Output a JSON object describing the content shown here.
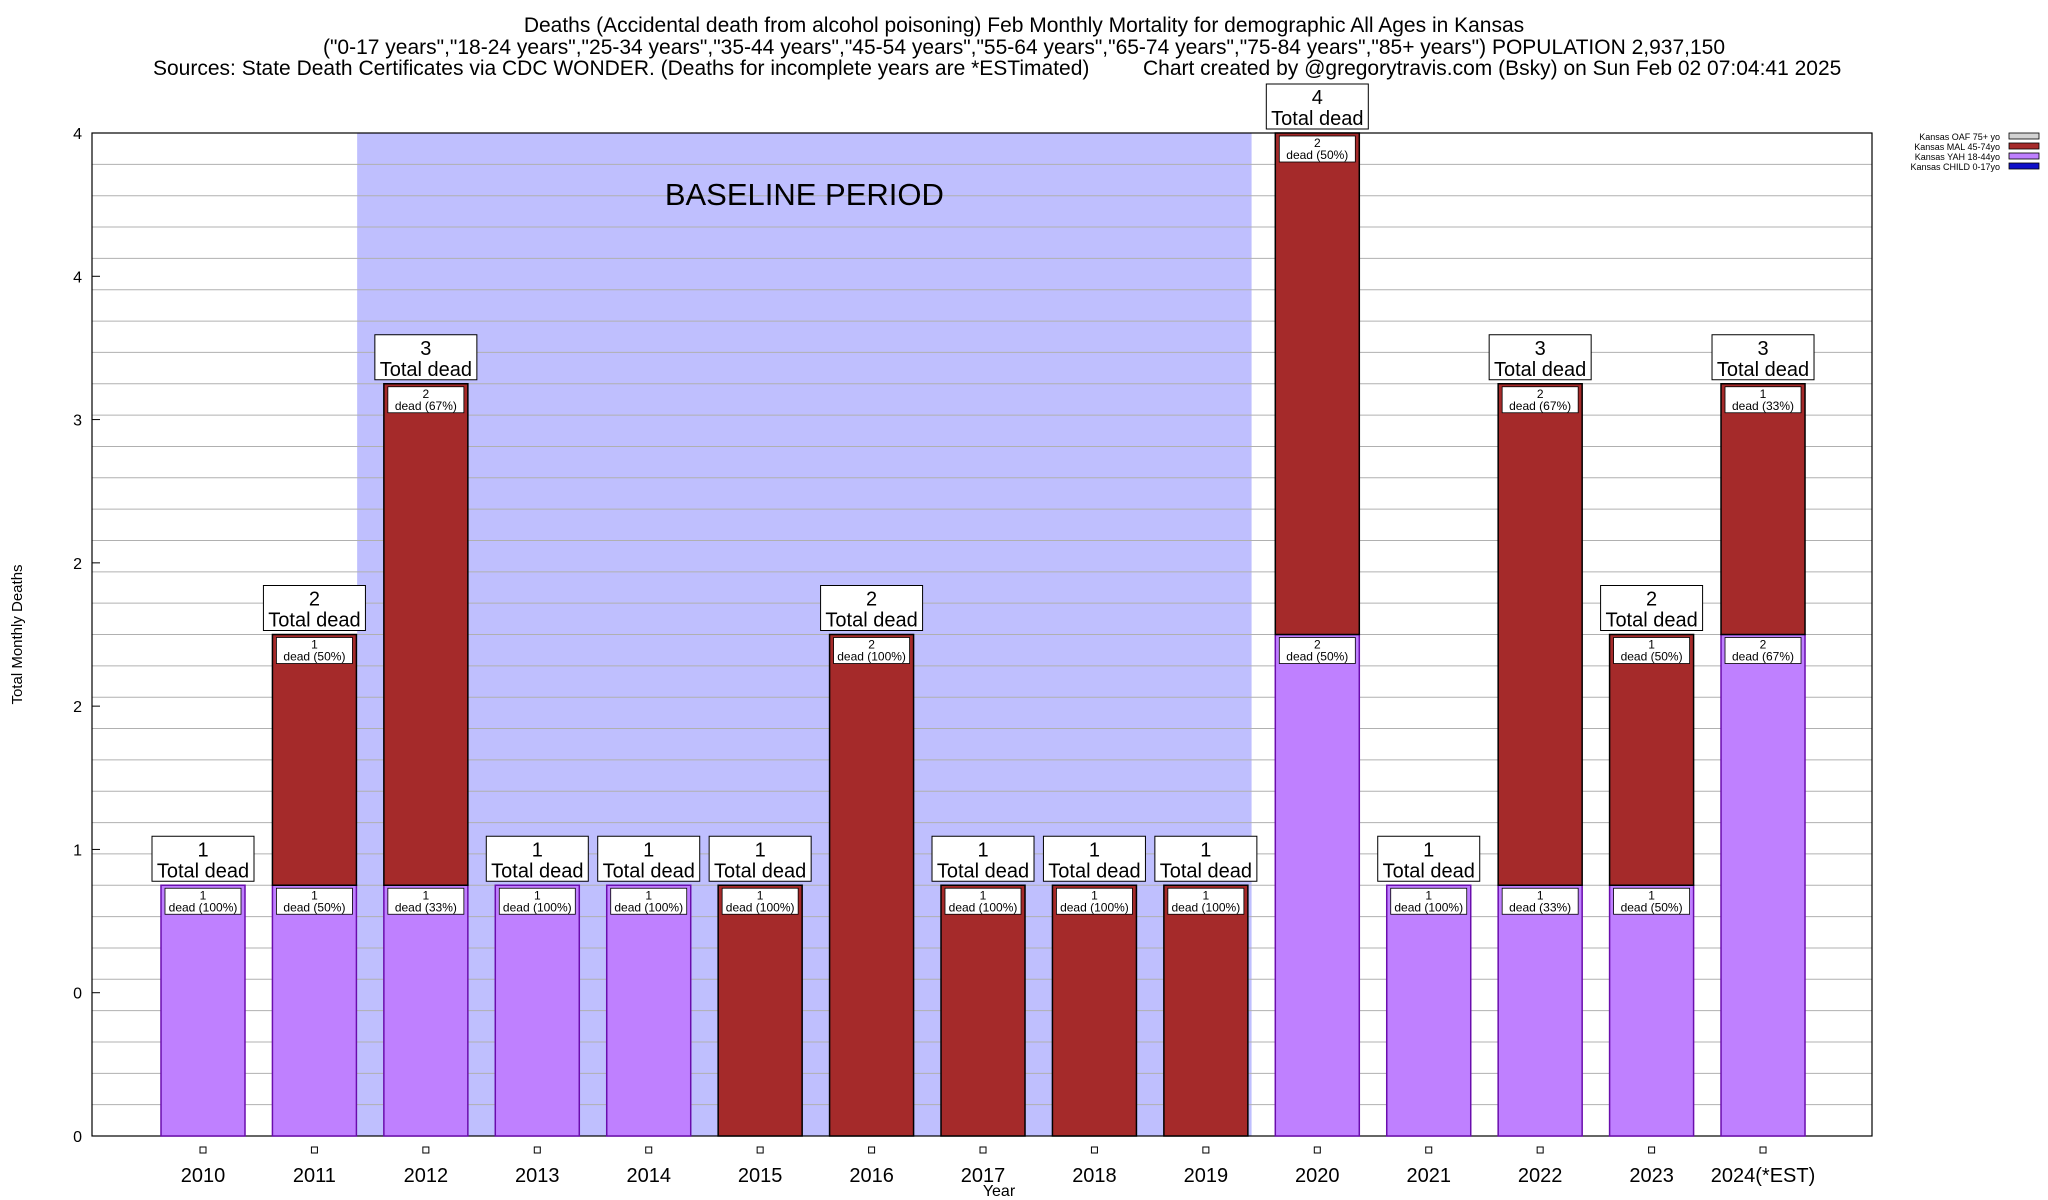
{
  "header": {
    "title": "Deaths (Accidental death from alcohol poisoning) Feb Monthly Mortality for demographic All Ages in Kansas",
    "subtitle": "(\"0-17 years\",\"18-24 years\",\"25-34 years\",\"35-44 years\",\"45-54 years\",\"55-64 years\",\"65-74 years\",\"75-84 years\",\"85+ years\") POPULATION 2,937,150",
    "sources": "Sources: State Death Certificates via CDC WONDER. (Deaths for incomplete years are *ESTimated)",
    "credit": "Chart created by @gregorytravis.com (Bsky) on Sun Feb 02 07:04:41 2025"
  },
  "chart_data": {
    "type": "bar",
    "stacked": true,
    "xlabel": "Year",
    "ylabel": "Total Monthly Deaths",
    "ylim": [
      0,
      4
    ],
    "yticks": [
      "0",
      "0",
      "1",
      "2",
      "2",
      "3",
      "4",
      "4"
    ],
    "grid": true,
    "legend_position": "top-right",
    "baseline_label": "BASELINE PERIOD",
    "baseline_range": [
      "2012",
      "2019"
    ],
    "categories": [
      "2010",
      "2011",
      "2012",
      "2013",
      "2014",
      "2015",
      "2016",
      "2017",
      "2018",
      "2019",
      "2020",
      "2021",
      "2022",
      "2023",
      "2024(*EST)"
    ],
    "series": [
      {
        "name": "Kansas CHILD 0-17yo",
        "color": "#1010c8",
        "values": [
          0,
          0,
          0,
          0,
          0,
          0,
          0,
          0,
          0,
          0,
          0,
          0,
          0,
          0,
          0
        ]
      },
      {
        "name": "Kansas YAH 18-44yo",
        "color": "#bf80ff",
        "values": [
          1,
          1,
          1,
          1,
          1,
          0,
          0,
          0,
          0,
          0,
          2,
          1,
          1,
          1,
          2
        ],
        "labels": [
          "1\ndead (100%)",
          "1\ndead (50%)",
          "1\ndead (33%)",
          "1\ndead (100%)",
          "1\ndead (100%)",
          "",
          "",
          "",
          "",
          "",
          "2\ndead (50%)",
          "1\ndead (100%)",
          "1\ndead (33%)",
          "1\ndead (50%)",
          "2\ndead (67%)"
        ]
      },
      {
        "name": "Kansas MAL 45-74yo",
        "color": "#a52a2a",
        "values": [
          0,
          1,
          2,
          0,
          0,
          1,
          2,
          1,
          1,
          1,
          2,
          0,
          2,
          1,
          1
        ],
        "labels": [
          "",
          "1\ndead (50%)",
          "2\ndead (67%)",
          "",
          "",
          "1\ndead (100%)",
          "2\ndead (100%)",
          "1\ndead (100%)",
          "1\ndead (100%)",
          "1\ndead (100%)",
          "2\ndead (50%)",
          "",
          "2\ndead (67%)",
          "1\ndead (50%)",
          "1\ndead (33%)"
        ]
      },
      {
        "name": "Kansas OAF 75+ yo",
        "color": "#d3d3d3",
        "values": [
          0,
          0,
          0,
          0,
          0,
          0,
          0,
          0,
          0,
          0,
          0,
          0,
          0,
          0,
          0
        ]
      }
    ],
    "totals": [
      1,
      2,
      3,
      1,
      1,
      1,
      2,
      1,
      1,
      1,
      4,
      1,
      3,
      2,
      3
    ],
    "total_suffix": "Total dead",
    "colors": {
      "baseline": "#bfbffe",
      "outline_yah": "#6a0dad"
    }
  }
}
